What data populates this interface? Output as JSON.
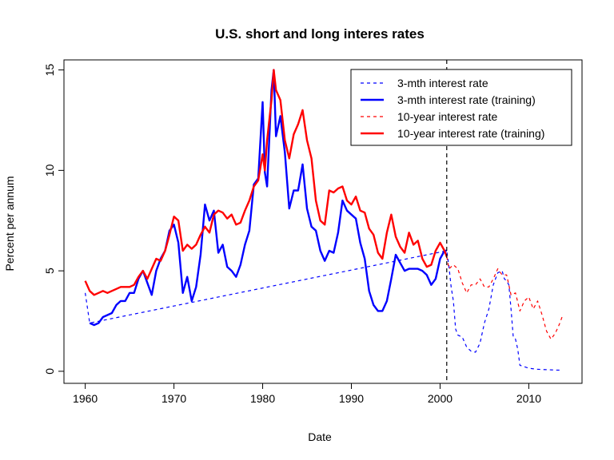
{
  "chart_data": {
    "type": "line",
    "title": "U.S. short and long interes rates",
    "xlabel": "Date",
    "ylabel": "Percent per annum",
    "xlim": [
      1957.6,
      2016.0
    ],
    "ylim": [
      -0.6,
      15.5
    ],
    "xticks": [
      1960,
      1970,
      1980,
      1990,
      2000,
      2010
    ],
    "yticks": [
      0,
      5,
      10,
      15
    ],
    "grid": false,
    "legend_position": "top-right",
    "vline": {
      "x": 2000.75,
      "style": "dashed"
    },
    "colors": {
      "short": "#0000ff",
      "long": "#ff0000",
      "vline": "#000000"
    },
    "series": [
      {
        "name": "3-mth interest rate",
        "style": "dashed",
        "color": "#0000ff",
        "x": [
          1960.0,
          1960.5,
          2000.75,
          2001.0,
          2001.25,
          2001.5,
          2001.75,
          2002.0,
          2002.5,
          2003.0,
          2003.5,
          2004.0,
          2004.5,
          2005.0,
          2005.5,
          2006.0,
          2006.5,
          2007.0,
          2007.25,
          2007.5,
          2007.75,
          2008.0,
          2008.25,
          2008.5,
          2008.75,
          2009.0,
          2010.0,
          2011.0,
          2012.0,
          2013.0,
          2013.75
        ],
        "values": [
          3.9,
          2.4,
          6.0,
          5.2,
          4.2,
          3.5,
          2.1,
          1.8,
          1.7,
          1.2,
          1.0,
          0.95,
          1.4,
          2.4,
          3.1,
          4.3,
          4.9,
          5.0,
          4.6,
          4.5,
          4.3,
          3.1,
          1.7,
          1.6,
          1.1,
          0.3,
          0.15,
          0.1,
          0.08,
          0.06,
          0.05
        ]
      },
      {
        "name": "3-mth interest rate (training)",
        "style": "solid",
        "color": "#0000ff",
        "x": [
          1960.5,
          1961.0,
          1961.5,
          1962.0,
          1962.5,
          1963.0,
          1963.5,
          1964.0,
          1964.5,
          1965.0,
          1965.5,
          1966.0,
          1966.5,
          1967.0,
          1967.5,
          1968.0,
          1968.5,
          1969.0,
          1969.5,
          1970.0,
          1970.5,
          1971.0,
          1971.5,
          1972.0,
          1972.5,
          1973.0,
          1973.5,
          1974.0,
          1974.5,
          1975.0,
          1975.5,
          1976.0,
          1976.5,
          1977.0,
          1977.5,
          1978.0,
          1978.5,
          1979.0,
          1979.5,
          1980.0,
          1980.25,
          1980.5,
          1981.0,
          1981.25,
          1981.5,
          1982.0,
          1982.5,
          1983.0,
          1983.5,
          1984.0,
          1984.5,
          1985.0,
          1985.5,
          1986.0,
          1986.5,
          1987.0,
          1987.5,
          1988.0,
          1988.5,
          1989.0,
          1989.5,
          1990.0,
          1990.5,
          1991.0,
          1991.5,
          1992.0,
          1992.5,
          1993.0,
          1993.5,
          1994.0,
          1994.5,
          1995.0,
          1995.5,
          1996.0,
          1996.5,
          1997.0,
          1997.5,
          1998.0,
          1998.5,
          1999.0,
          1999.5,
          2000.0,
          2000.5,
          2000.75
        ],
        "values": [
          2.4,
          2.3,
          2.4,
          2.7,
          2.8,
          2.9,
          3.3,
          3.5,
          3.5,
          3.9,
          3.9,
          4.6,
          5.0,
          4.4,
          3.8,
          5.0,
          5.6,
          6.0,
          7.0,
          7.3,
          6.4,
          3.9,
          4.7,
          3.5,
          4.2,
          5.8,
          8.3,
          7.5,
          8.0,
          5.9,
          6.3,
          5.2,
          5.0,
          4.7,
          5.3,
          6.3,
          7.0,
          9.3,
          9.6,
          13.4,
          9.9,
          9.2,
          14.0,
          15.0,
          11.7,
          12.7,
          10.9,
          8.1,
          9.0,
          9.0,
          10.3,
          8.1,
          7.2,
          7.0,
          6.0,
          5.5,
          6.0,
          5.9,
          6.9,
          8.5,
          8.0,
          7.8,
          7.6,
          6.4,
          5.6,
          4.0,
          3.3,
          3.0,
          3.0,
          3.5,
          4.6,
          5.8,
          5.4,
          5.0,
          5.1,
          5.1,
          5.1,
          5.0,
          4.8,
          4.3,
          4.6,
          5.6,
          6.0,
          6.0
        ]
      },
      {
        "name": "10-year interest rate",
        "style": "dashed",
        "color": "#ff0000",
        "x": [
          2000.75,
          2001.0,
          2001.5,
          2002.0,
          2002.5,
          2003.0,
          2003.5,
          2004.0,
          2004.5,
          2005.0,
          2005.5,
          2006.0,
          2006.5,
          2007.0,
          2007.5,
          2008.0,
          2008.5,
          2009.0,
          2009.5,
          2010.0,
          2010.5,
          2011.0,
          2011.5,
          2012.0,
          2012.5,
          2013.0,
          2013.5,
          2013.75
        ],
        "values": [
          5.7,
          5.1,
          5.3,
          5.1,
          4.4,
          3.9,
          4.3,
          4.3,
          4.6,
          4.2,
          4.2,
          4.6,
          5.1,
          4.8,
          4.8,
          3.8,
          3.9,
          3.0,
          3.5,
          3.7,
          3.1,
          3.5,
          2.8,
          2.0,
          1.6,
          1.9,
          2.4,
          2.7
        ]
      },
      {
        "name": "10-year interest rate (training)",
        "style": "solid",
        "color": "#ff0000",
        "x": [
          1960.0,
          1960.5,
          1961.0,
          1961.5,
          1962.0,
          1962.5,
          1963.0,
          1963.5,
          1964.0,
          1964.5,
          1965.0,
          1965.5,
          1966.0,
          1966.5,
          1967.0,
          1967.5,
          1968.0,
          1968.5,
          1969.0,
          1969.5,
          1970.0,
          1970.5,
          1971.0,
          1971.5,
          1972.0,
          1972.5,
          1973.0,
          1973.5,
          1974.0,
          1974.5,
          1975.0,
          1975.5,
          1976.0,
          1976.5,
          1977.0,
          1977.5,
          1978.0,
          1978.5,
          1979.0,
          1979.5,
          1980.0,
          1980.25,
          1980.5,
          1981.0,
          1981.25,
          1981.5,
          1982.0,
          1982.5,
          1983.0,
          1983.5,
          1984.0,
          1984.5,
          1985.0,
          1985.5,
          1986.0,
          1986.5,
          1987.0,
          1987.5,
          1988.0,
          1988.5,
          1989.0,
          1989.5,
          1990.0,
          1990.5,
          1991.0,
          1991.5,
          1992.0,
          1992.5,
          1993.0,
          1993.5,
          1994.0,
          1994.5,
          1995.0,
          1995.5,
          1996.0,
          1996.5,
          1997.0,
          1997.5,
          1998.0,
          1998.5,
          1999.0,
          1999.5,
          2000.0,
          2000.5,
          2000.75
        ],
        "values": [
          4.5,
          4.0,
          3.8,
          3.9,
          4.0,
          3.9,
          4.0,
          4.1,
          4.2,
          4.2,
          4.2,
          4.3,
          4.7,
          5.0,
          4.6,
          5.1,
          5.6,
          5.5,
          6.0,
          6.8,
          7.7,
          7.5,
          6.0,
          6.3,
          6.1,
          6.3,
          6.8,
          7.2,
          6.9,
          7.8,
          8.0,
          7.9,
          7.6,
          7.8,
          7.3,
          7.4,
          8.0,
          8.5,
          9.2,
          9.5,
          10.8,
          10.0,
          11.5,
          13.5,
          15.0,
          14.0,
          13.5,
          11.5,
          10.6,
          11.8,
          12.3,
          13.0,
          11.5,
          10.6,
          8.5,
          7.5,
          7.3,
          9.0,
          8.9,
          9.1,
          9.2,
          8.5,
          8.3,
          8.7,
          8.0,
          7.9,
          7.1,
          6.8,
          5.9,
          5.6,
          6.9,
          7.8,
          6.7,
          6.2,
          5.9,
          6.9,
          6.3,
          6.5,
          5.6,
          5.2,
          5.3,
          6.0,
          6.4,
          6.0,
          5.7
        ]
      }
    ]
  }
}
